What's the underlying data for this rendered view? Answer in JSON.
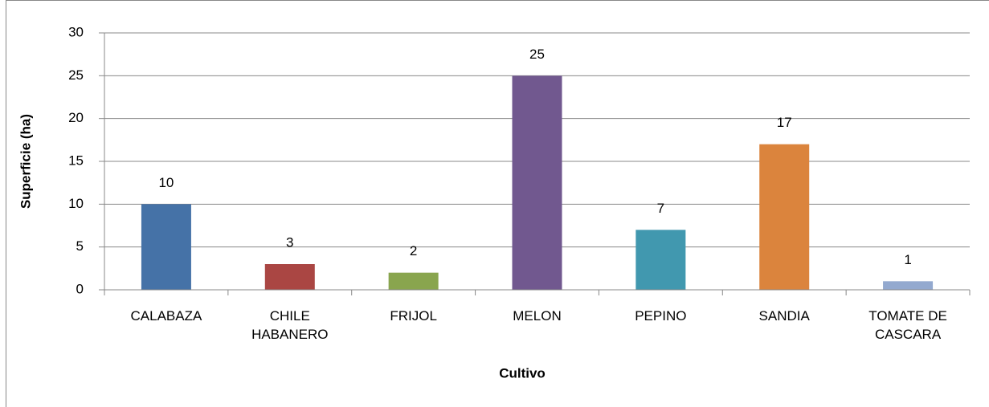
{
  "chart_data": {
    "type": "bar",
    "x_label": "Cultivo",
    "y_label": "Superficie (ha)",
    "categories": [
      "CALABAZA",
      "CHILE HABANERO",
      "FRIJOL",
      "MELON",
      "PEPINO",
      "SANDIA",
      "TOMATE DE CASCARA"
    ],
    "values": [
      10,
      3,
      2,
      25,
      7,
      17,
      1
    ],
    "colors": [
      "#4572a7",
      "#aa4643",
      "#89a54e",
      "#71588f",
      "#4198af",
      "#db843d",
      "#93a9cf"
    ],
    "ylim": [
      0,
      30
    ],
    "yticks": [
      0,
      5,
      10,
      15,
      20,
      25,
      30
    ],
    "grid": true
  }
}
